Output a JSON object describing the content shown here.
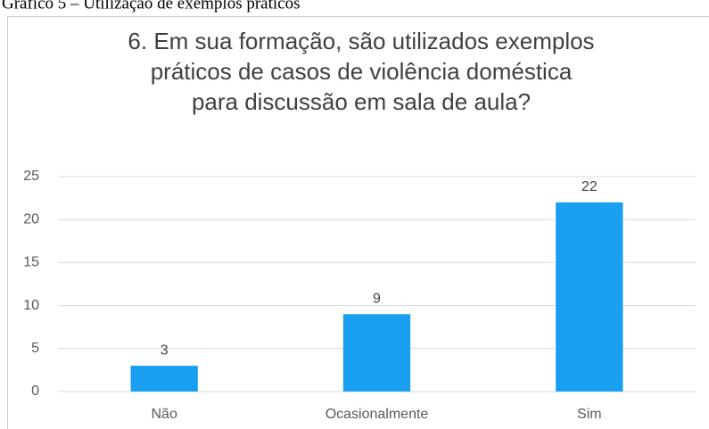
{
  "caption": "Gráfico 5 – Utilização de exemplos práticos",
  "chart_data": {
    "type": "bar",
    "title": [
      "6. Em sua formação, são utilizados exemplos",
      "práticos de casos de violência doméstica",
      "para discussão em sala de aula?"
    ],
    "categories": [
      "Não",
      "Ocasionalmente",
      "Sim"
    ],
    "values": [
      3,
      9,
      22
    ],
    "color": "#1a9ff0",
    "ylim": [
      0,
      25
    ],
    "yticks": [
      0,
      5,
      10,
      15,
      20,
      25
    ],
    "grid": true
  }
}
